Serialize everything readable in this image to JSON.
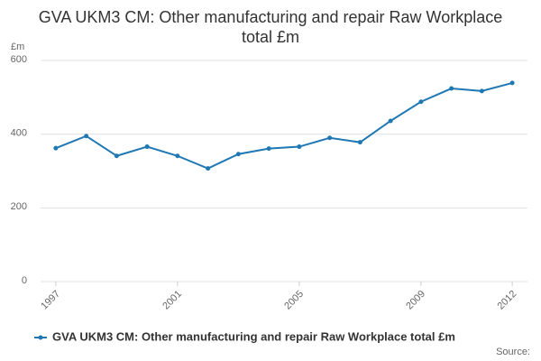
{
  "chart_data": {
    "type": "line",
    "title": "GVA UKM3 CM: Other manufacturing and repair Raw Workplace total £m",
    "y_label": "£m",
    "source": "Source:",
    "x": [
      1997,
      1998,
      1999,
      2000,
      2001,
      2002,
      2003,
      2004,
      2005,
      2006,
      2007,
      2008,
      2009,
      2010,
      2011,
      2012
    ],
    "series": [
      {
        "name": "GVA UKM3 CM: Other manufacturing and repair Raw Workplace total £m",
        "color": "#1f78b4",
        "values": [
          362,
          395,
          341,
          366,
          341,
          307,
          346,
          361,
          366,
          390,
          378,
          436,
          488,
          524,
          517,
          539
        ]
      }
    ],
    "xlim": [
      1996.5,
      2012.5
    ],
    "xticks": [
      1997,
      2001,
      2005,
      2009,
      2012
    ],
    "ylim": [
      0,
      600
    ],
    "yticks": [
      0,
      200,
      400,
      600
    ],
    "grid": true
  }
}
